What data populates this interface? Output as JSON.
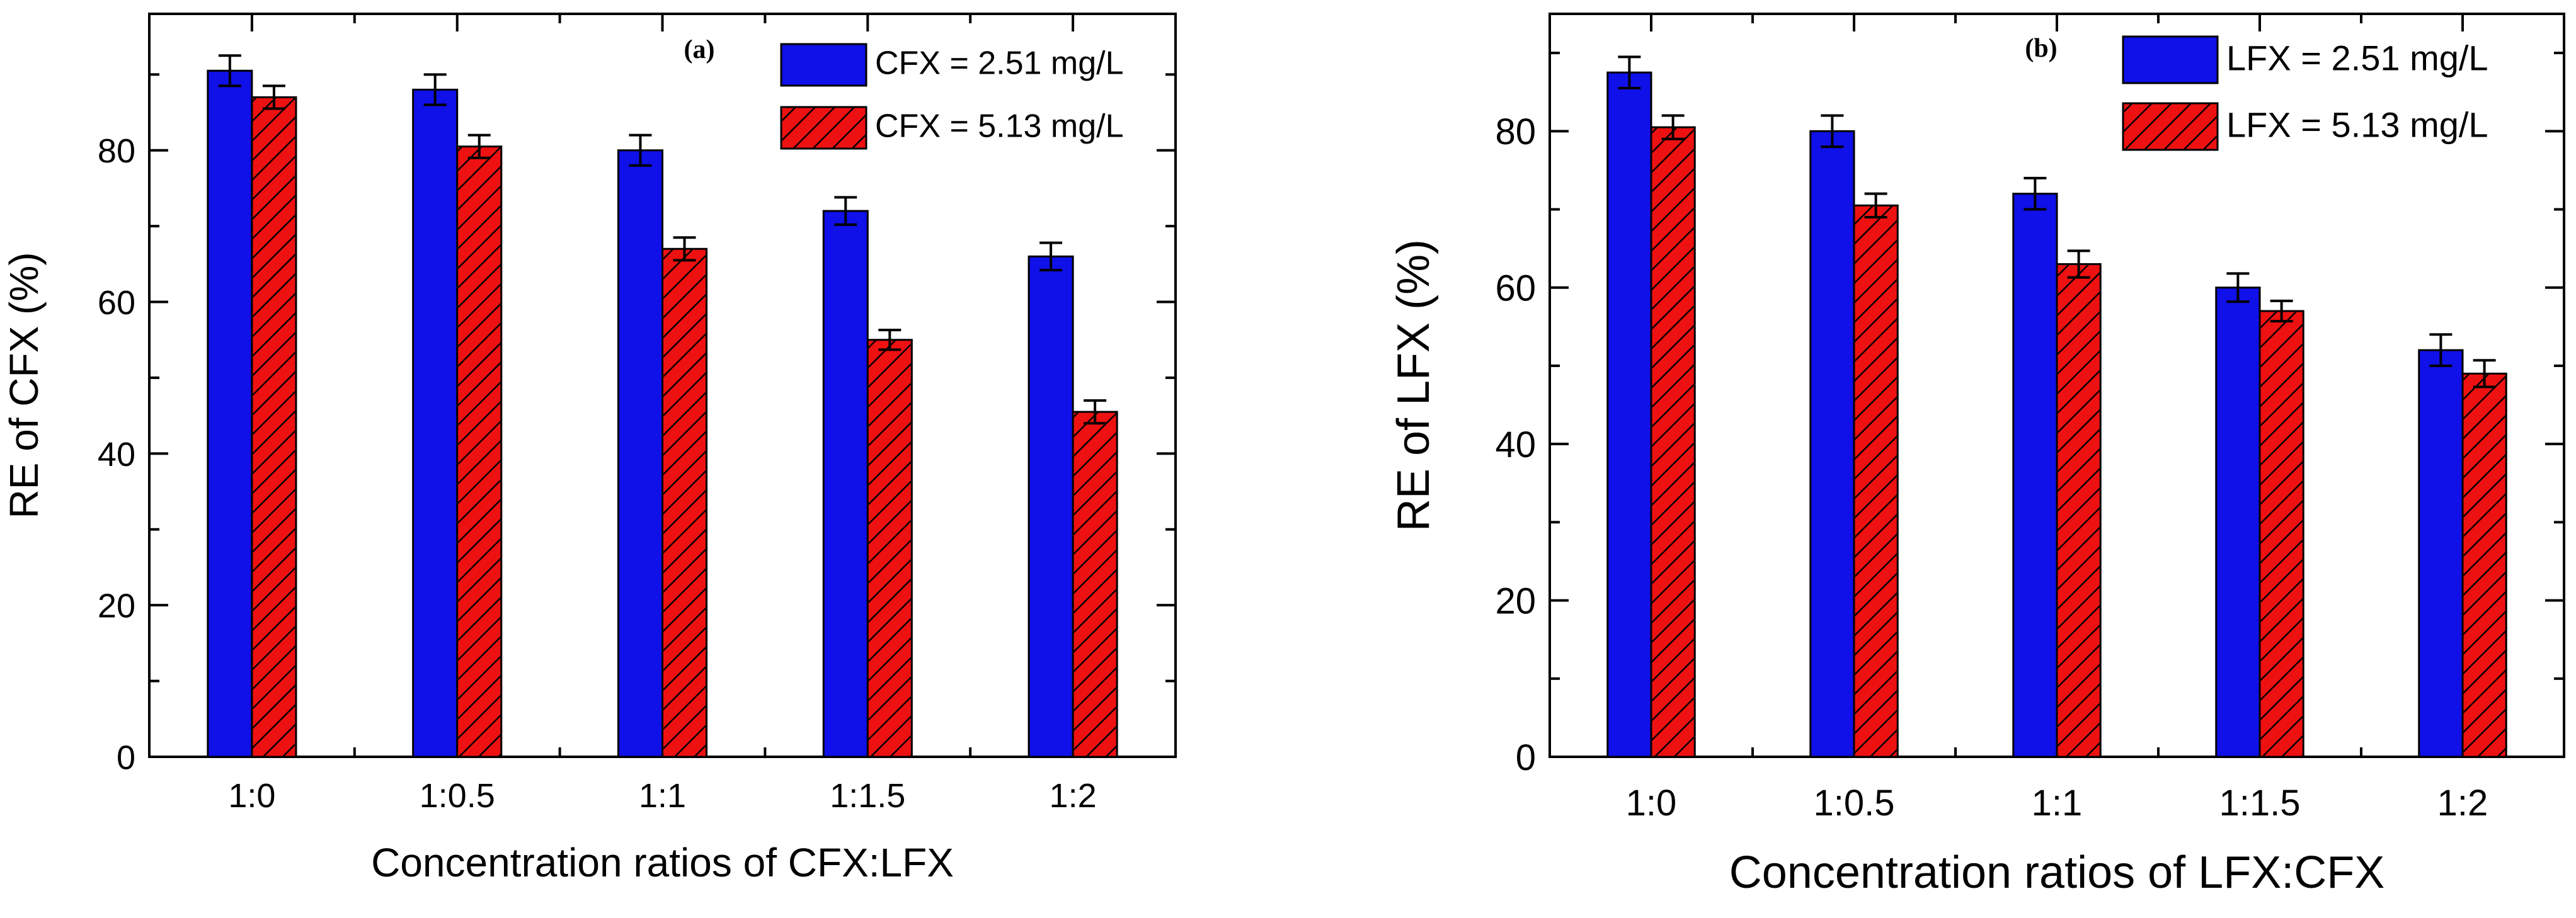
{
  "chart_data": [
    {
      "type": "bar",
      "panel_label": "(a)",
      "categories": [
        "1:0",
        "1:0.5",
        "1:1",
        "1:1.5",
        "1:2"
      ],
      "series": [
        {
          "name": "CFX = 2.51 mg/L",
          "values": [
            90.5,
            88,
            80,
            72,
            66
          ],
          "errors": [
            2,
            2,
            2,
            1.8,
            1.8
          ],
          "color": "#1010e8",
          "pattern": "solid"
        },
        {
          "name": "CFX = 5.13 mg/L",
          "values": [
            87,
            80.5,
            67,
            55,
            45.5
          ],
          "errors": [
            1.5,
            1.5,
            1.5,
            1.3,
            1.5
          ],
          "color": "#ee1111",
          "pattern": "hatch"
        }
      ],
      "xlabel": "Concentration ratios of CFX:LFX",
      "ylabel": "RE of CFX (%)",
      "ylim": [
        0,
        98
      ],
      "yticks": [
        0,
        20,
        40,
        60,
        80
      ],
      "legend_position": "top-right"
    },
    {
      "type": "bar",
      "panel_label": "(b)",
      "categories": [
        "1:0",
        "1:0.5",
        "1:1",
        "1:1.5",
        "1:2"
      ],
      "series": [
        {
          "name": "LFX = 2.51 mg/L",
          "values": [
            87.5,
            80,
            72,
            60,
            52
          ],
          "errors": [
            2,
            2,
            2,
            1.8,
            2
          ],
          "color": "#1010e8",
          "pattern": "solid"
        },
        {
          "name": "LFX = 5.13 mg/L",
          "values": [
            80.5,
            70.5,
            63,
            57,
            49
          ],
          "errors": [
            1.5,
            1.5,
            1.7,
            1.3,
            1.7
          ],
          "color": "#ee1111",
          "pattern": "hatch"
        }
      ],
      "xlabel": "Concentration ratios of LFX:CFX",
      "ylabel": "RE of LFX (%)",
      "ylim": [
        0,
        95
      ],
      "yticks": [
        0,
        20,
        40,
        60,
        80
      ],
      "legend_position": "top-right"
    }
  ]
}
